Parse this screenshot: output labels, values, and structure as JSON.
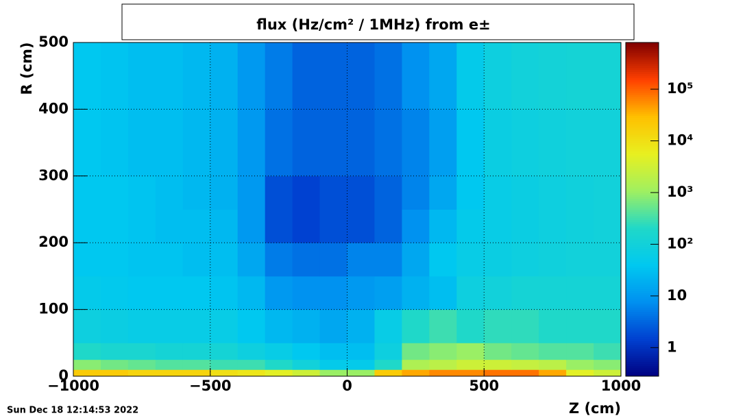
{
  "chart_data": {
    "type": "heatmap",
    "title": "flux (Hz/cm² / 1MHz) from e±",
    "x_label": "Z (cm)",
    "y_label": "R (cm)",
    "footer": "Sun Dec 18 12:14:53 2022",
    "xbins": [
      -1000,
      -900,
      -800,
      -700,
      -600,
      -500,
      -400,
      -300,
      -200,
      -100,
      0,
      100,
      200,
      300,
      400,
      500,
      600,
      700,
      800,
      900,
      1000
    ],
    "ybins": [
      0,
      10,
      25,
      50,
      100,
      150,
      200,
      250,
      300,
      400,
      500
    ],
    "z": [
      [
        20000,
        20000,
        15000,
        15000,
        15000,
        10000,
        8000,
        5000,
        3000,
        1000,
        1000,
        20000,
        40000,
        60000,
        60000,
        80000,
        80000,
        40000,
        5000,
        3000
      ],
      [
        800,
        600,
        500,
        400,
        400,
        300,
        300,
        200,
        100,
        50,
        50,
        200,
        1500,
        2000,
        3000,
        3000,
        2500,
        2000,
        1000,
        800
      ],
      [
        200,
        150,
        150,
        120,
        120,
        120,
        80,
        60,
        40,
        30,
        30,
        80,
        600,
        800,
        1000,
        600,
        500,
        400,
        400,
        300
      ],
      [
        80,
        70,
        60,
        60,
        60,
        60,
        40,
        25,
        20,
        15,
        20,
        60,
        200,
        300,
        200,
        250,
        250,
        200,
        200,
        200
      ],
      [
        50,
        45,
        40,
        40,
        40,
        35,
        25,
        10,
        8,
        8,
        10,
        12,
        20,
        30,
        80,
        100,
        120,
        120,
        120,
        120
      ],
      [
        40,
        40,
        35,
        35,
        30,
        30,
        15,
        5,
        4,
        4,
        6,
        6,
        15,
        40,
        60,
        70,
        80,
        90,
        100,
        100
      ],
      [
        40,
        40,
        35,
        30,
        30,
        25,
        10,
        2,
        1.5,
        2,
        2,
        3,
        8,
        25,
        50,
        60,
        70,
        80,
        90,
        100
      ],
      [
        40,
        40,
        35,
        30,
        25,
        20,
        10,
        2,
        1.5,
        2,
        2,
        3,
        6,
        15,
        40,
        60,
        70,
        80,
        90,
        100
      ],
      [
        40,
        35,
        30,
        30,
        25,
        20,
        10,
        4,
        3,
        3,
        3,
        4,
        6,
        12,
        40,
        70,
        80,
        90,
        100,
        100
      ],
      [
        40,
        35,
        30,
        30,
        25,
        20,
        10,
        5,
        3,
        3,
        3,
        4,
        8,
        15,
        50,
        80,
        100,
        110,
        120,
        120
      ]
    ],
    "xlim": [
      -1000,
      1000
    ],
    "xticks": [
      {
        "value": -1000,
        "label": "−1000"
      },
      {
        "value": -500,
        "label": "−500"
      },
      0,
      500,
      1000
    ],
    "ylim": [
      0,
      500
    ],
    "yticks": [
      0,
      100,
      200,
      300,
      400,
      500
    ],
    "zlim": [
      0.28,
      800000
    ],
    "zlog": true,
    "zticks": [
      1,
      10,
      {
        "value": 100,
        "label": "10²"
      },
      {
        "value": 1000,
        "label": "10³"
      },
      {
        "value": 10000,
        "label": "10⁴"
      },
      {
        "value": 100000,
        "label": "10⁵"
      }
    ],
    "palette": [
      "#000080",
      "#0040d0",
      "#0090f0",
      "#00c8f0",
      "#20d8c8",
      "#a0f060",
      "#e8f020",
      "#ffc000",
      "#ff4000",
      "#800000"
    ],
    "grid": true
  }
}
